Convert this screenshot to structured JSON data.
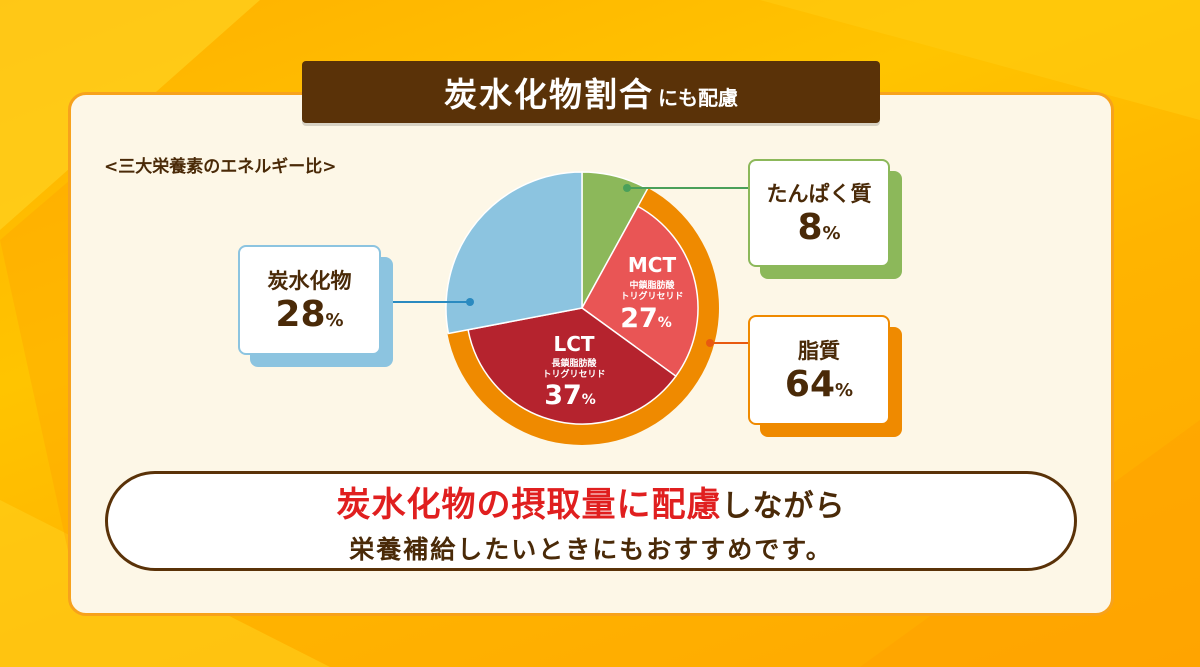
{
  "header": {
    "title_main": "炭水化物割合",
    "title_sub": "にも配慮"
  },
  "chart_data": {
    "type": "pie",
    "title": "<三大栄養素のエネルギー比>",
    "unit": "%",
    "slices": [
      {
        "name": "たんぱく質",
        "value": 8,
        "color": "#8cb85a"
      },
      {
        "name": "MCT",
        "detail": "中鎖脂肪酸トリグリセリド",
        "value": 27,
        "color": "#e95555"
      },
      {
        "name": "LCT",
        "detail": "長鎖脂肪酸トリグリセリド",
        "value": 37,
        "color": "#b5232e"
      },
      {
        "name": "炭水化物",
        "value": 28,
        "color": "#8cc4e0"
      }
    ],
    "groups": [
      {
        "name": "脂質",
        "value": 64,
        "members": [
          "MCT",
          "LCT"
        ],
        "color": "#ef8a00"
      }
    ],
    "callouts": [
      {
        "label": "たんぱく質",
        "value": "8"
      },
      {
        "label": "炭水化物",
        "value": "28"
      },
      {
        "label": "脂質",
        "value": "64"
      }
    ],
    "inner_labels": [
      {
        "name": "MCT",
        "detail_line1": "中鎖脂肪酸",
        "detail_line2": "トリグリセリド",
        "value": "27"
      },
      {
        "name": "LCT",
        "detail_line1": "長鎖脂肪酸",
        "detail_line2": "トリグリセリド",
        "value": "37"
      }
    ]
  },
  "message": {
    "highlight": "炭水化物の摂取量に配慮",
    "line1_rest": "しながら",
    "line2": "栄養補給したいときにもおすすめです。"
  }
}
